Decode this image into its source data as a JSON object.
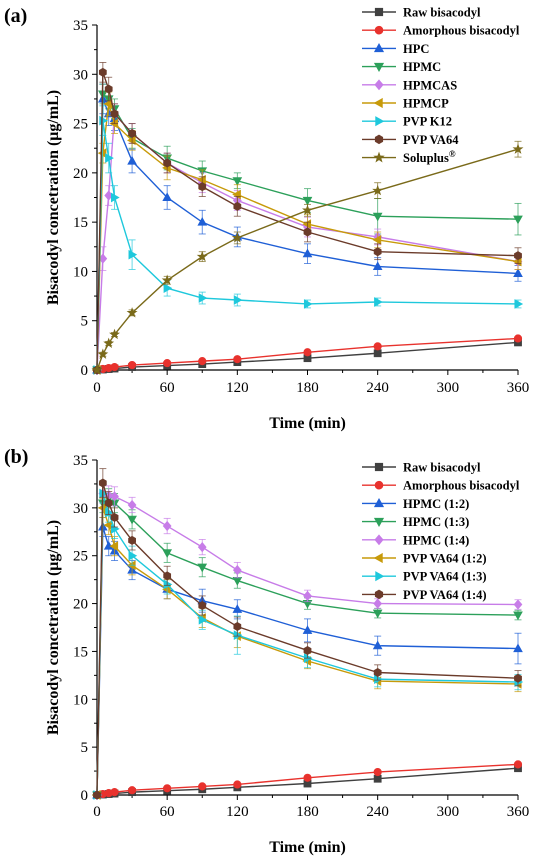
{
  "chart_data": [
    {
      "type": "line",
      "panel_label": "(a)",
      "xlabel": "Time (min)",
      "ylabel": "Bisacodyl concetration (μg/mL)",
      "xlim": [
        0,
        360
      ],
      "ylim": [
        0,
        35
      ],
      "xticks": [
        0,
        60,
        120,
        180,
        240,
        300,
        360
      ],
      "yticks": [
        0,
        5,
        10,
        15,
        20,
        25,
        30,
        35
      ],
      "grid": false,
      "legend_position": "top-right",
      "series": [
        {
          "name": "Raw bisacodyl",
          "color": "#404040",
          "marker": "square",
          "x": [
            0,
            5,
            10,
            15,
            30,
            60,
            90,
            120,
            180,
            240,
            360
          ],
          "y": [
            0,
            0.05,
            0.1,
            0.15,
            0.3,
            0.45,
            0.6,
            0.8,
            1.2,
            1.7,
            2.8
          ],
          "err": [
            0,
            0,
            0,
            0,
            0.05,
            0.1,
            0.1,
            0.1,
            0.1,
            0.1,
            0.15
          ]
        },
        {
          "name": "Amorphous bisacodyl",
          "color": "#e8322d",
          "marker": "circle",
          "x": [
            0,
            5,
            10,
            15,
            30,
            60,
            90,
            120,
            180,
            240,
            360
          ],
          "y": [
            0,
            0.1,
            0.2,
            0.3,
            0.5,
            0.7,
            0.9,
            1.1,
            1.8,
            2.4,
            3.2
          ],
          "err": [
            0,
            0,
            0,
            0.05,
            0.1,
            0.1,
            0.1,
            0.1,
            0.15,
            0.15,
            0.2
          ]
        },
        {
          "name": "HPC",
          "color": "#1f5fd6",
          "marker": "triangle-up",
          "x": [
            0,
            5,
            10,
            15,
            30,
            60,
            90,
            120,
            180,
            240,
            360
          ],
          "y": [
            0,
            27.5,
            26,
            25.5,
            21.2,
            17.5,
            15,
            13.5,
            11.8,
            10.5,
            9.8
          ],
          "err": [
            0,
            1.5,
            1.2,
            1.2,
            1.2,
            1.2,
            1.2,
            1.0,
            1.0,
            0.9,
            0.8
          ]
        },
        {
          "name": "HPMC",
          "color": "#2ca05a",
          "marker": "triangle-down",
          "x": [
            0,
            5,
            10,
            15,
            30,
            60,
            90,
            120,
            180,
            240,
            360
          ],
          "y": [
            0,
            28,
            27.5,
            26.5,
            23.5,
            21.5,
            20.2,
            19.2,
            17.2,
            15.6,
            15.3
          ],
          "err": [
            0,
            1.0,
            1.0,
            1.0,
            1.0,
            1.2,
            1.0,
            0.8,
            1.2,
            1.8,
            1.6
          ]
        },
        {
          "name": "HPMCAS",
          "color": "#c77ce8",
          "marker": "diamond",
          "x": [
            0,
            5,
            10,
            15,
            30,
            60,
            90,
            120,
            180,
            240,
            360
          ],
          "y": [
            0,
            11.3,
            17.7,
            26,
            24,
            21,
            19,
            17.2,
            14.5,
            13.5,
            11
          ],
          "err": [
            0,
            1.2,
            1.0,
            1.0,
            1.0,
            1.0,
            1.0,
            1.0,
            1.0,
            0.8,
            0.8
          ]
        },
        {
          "name": "HPMCP",
          "color": "#c79a0a",
          "marker": "triangle-left",
          "x": [
            0,
            5,
            10,
            15,
            30,
            60,
            90,
            120,
            180,
            240,
            360
          ],
          "y": [
            0,
            22,
            27,
            25,
            23.3,
            20.5,
            19.3,
            17.8,
            14.8,
            13.2,
            11
          ],
          "err": [
            0,
            1.0,
            1.2,
            1.0,
            1.0,
            1.2,
            1.0,
            1.0,
            1.0,
            0.8,
            0.8
          ]
        },
        {
          "name": "PVP K12",
          "color": "#1ec8dc",
          "marker": "triangle-right",
          "x": [
            0,
            5,
            10,
            15,
            30,
            60,
            90,
            120,
            180,
            240,
            360
          ],
          "y": [
            0,
            25.3,
            21.5,
            17.5,
            11.7,
            8.3,
            7.3,
            7.1,
            6.7,
            6.9,
            6.7
          ],
          "err": [
            0,
            1.5,
            1.5,
            1.2,
            1.5,
            0.8,
            0.6,
            0.6,
            0.4,
            0.4,
            0.4
          ]
        },
        {
          "name": "PVP VA64",
          "color": "#6b3b2a",
          "marker": "hexagon",
          "x": [
            0,
            5,
            10,
            15,
            30,
            60,
            90,
            120,
            180,
            240,
            360
          ],
          "y": [
            0,
            30.2,
            28.5,
            26,
            24,
            21,
            18.6,
            16.6,
            14,
            12,
            11.6
          ],
          "err": [
            0,
            1.0,
            1.2,
            1.0,
            1.0,
            1.0,
            1.0,
            1.0,
            1.0,
            0.8,
            0.8
          ]
        },
        {
          "name": "Soluplus",
          "superscript": "®",
          "color": "#7a6a1a",
          "marker": "star",
          "x": [
            0,
            5,
            10,
            15,
            30,
            60,
            90,
            120,
            180,
            240,
            360
          ],
          "y": [
            0,
            1.6,
            2.7,
            3.6,
            5.8,
            9.1,
            11.5,
            13.4,
            16.2,
            18.2,
            22.4
          ],
          "err": [
            0,
            0.2,
            0.2,
            0.2,
            0.3,
            0.4,
            0.5,
            0.6,
            0.6,
            0.8,
            0.8
          ]
        }
      ]
    },
    {
      "type": "line",
      "panel_label": "(b)",
      "xlabel": "Time (min)",
      "ylabel": "Bisacodyl concetration (μg/mL)",
      "xlim": [
        0,
        360
      ],
      "ylim": [
        0,
        35
      ],
      "xticks": [
        0,
        60,
        120,
        180,
        240,
        300,
        360
      ],
      "yticks": [
        0,
        5,
        10,
        15,
        20,
        25,
        30,
        35
      ],
      "grid": false,
      "legend_position": "top-right",
      "series": [
        {
          "name": "Raw bisacodyl",
          "color": "#404040",
          "marker": "square",
          "x": [
            0,
            5,
            10,
            15,
            30,
            60,
            90,
            120,
            180,
            240,
            360
          ],
          "y": [
            0,
            0.05,
            0.1,
            0.15,
            0.3,
            0.45,
            0.6,
            0.8,
            1.2,
            1.7,
            2.8
          ],
          "err": [
            0,
            0,
            0,
            0,
            0.05,
            0.1,
            0.1,
            0.1,
            0.1,
            0.1,
            0.15
          ]
        },
        {
          "name": "Amorphous bisacodyl",
          "color": "#e8322d",
          "marker": "circle",
          "x": [
            0,
            5,
            10,
            15,
            30,
            60,
            90,
            120,
            180,
            240,
            360
          ],
          "y": [
            0,
            0.1,
            0.2,
            0.3,
            0.5,
            0.7,
            0.9,
            1.1,
            1.8,
            2.4,
            3.2
          ],
          "err": [
            0,
            0,
            0,
            0.05,
            0.1,
            0.1,
            0.1,
            0.1,
            0.15,
            0.15,
            0.2
          ]
        },
        {
          "name": "HPMC (1:2)",
          "color": "#1f5fd6",
          "marker": "triangle-up",
          "x": [
            0,
            5,
            10,
            15,
            30,
            60,
            90,
            120,
            180,
            240,
            360
          ],
          "y": [
            0,
            28,
            26,
            25.5,
            23.5,
            21.5,
            20.3,
            19.4,
            17.2,
            15.6,
            15.3
          ],
          "err": [
            0,
            1.0,
            1.0,
            1.0,
            1.0,
            1.0,
            1.2,
            1.0,
            1.2,
            1.0,
            1.6
          ]
        },
        {
          "name": "HPMC (1:3)",
          "color": "#2ca05a",
          "marker": "triangle-down",
          "x": [
            0,
            5,
            10,
            15,
            30,
            60,
            90,
            120,
            180,
            240,
            360
          ],
          "y": [
            0,
            30.5,
            31,
            30.5,
            28.8,
            25.3,
            23.8,
            22.4,
            20,
            19,
            18.8
          ],
          "err": [
            0,
            1.0,
            1.0,
            1.0,
            1.0,
            1.0,
            1.0,
            0.8,
            0.6,
            0.5,
            0.5
          ]
        },
        {
          "name": "HPMC (1:4)",
          "color": "#c77ce8",
          "marker": "diamond",
          "x": [
            0,
            5,
            10,
            15,
            30,
            60,
            90,
            120,
            180,
            240,
            360
          ],
          "y": [
            0,
            31.5,
            31.3,
            31.2,
            30.3,
            28.1,
            25.9,
            23.5,
            20.8,
            20,
            19.9
          ],
          "err": [
            0,
            1.0,
            1.0,
            1.0,
            0.8,
            0.8,
            0.8,
            0.8,
            0.6,
            0.5,
            0.5
          ]
        },
        {
          "name": "PVP VA64 (1:2)",
          "color": "#c79a0a",
          "marker": "triangle-left",
          "x": [
            0,
            5,
            10,
            15,
            30,
            60,
            90,
            120,
            180,
            240,
            360
          ],
          "y": [
            0,
            30,
            28.2,
            26,
            24,
            21.5,
            18.5,
            16.6,
            14,
            11.9,
            11.6
          ],
          "err": [
            0,
            1.0,
            1.0,
            1.0,
            1.0,
            1.0,
            1.0,
            1.2,
            0.8,
            0.8,
            0.8
          ]
        },
        {
          "name": "PVP VA64 (1:3)",
          "color": "#1ec8dc",
          "marker": "triangle-right",
          "x": [
            0,
            5,
            10,
            15,
            30,
            60,
            90,
            120,
            180,
            240,
            360
          ],
          "y": [
            0,
            31.5,
            29.5,
            27.8,
            25,
            22,
            18.3,
            16.7,
            14.3,
            12.1,
            11.8
          ],
          "err": [
            0,
            1.0,
            1.0,
            1.0,
            1.0,
            1.0,
            1.0,
            2.0,
            1.0,
            0.8,
            0.8
          ]
        },
        {
          "name": "PVP VA64 (1:4)",
          "color": "#6b3b2a",
          "marker": "hexagon",
          "x": [
            0,
            5,
            10,
            15,
            30,
            60,
            90,
            120,
            180,
            240,
            360
          ],
          "y": [
            0,
            32.6,
            30.5,
            29,
            26.6,
            22.9,
            19.8,
            17.6,
            15.1,
            12.8,
            12.2
          ],
          "err": [
            0,
            1.5,
            1.2,
            1.0,
            1.0,
            1.0,
            1.0,
            1.0,
            0.8,
            0.8,
            0.8
          ]
        }
      ]
    }
  ]
}
